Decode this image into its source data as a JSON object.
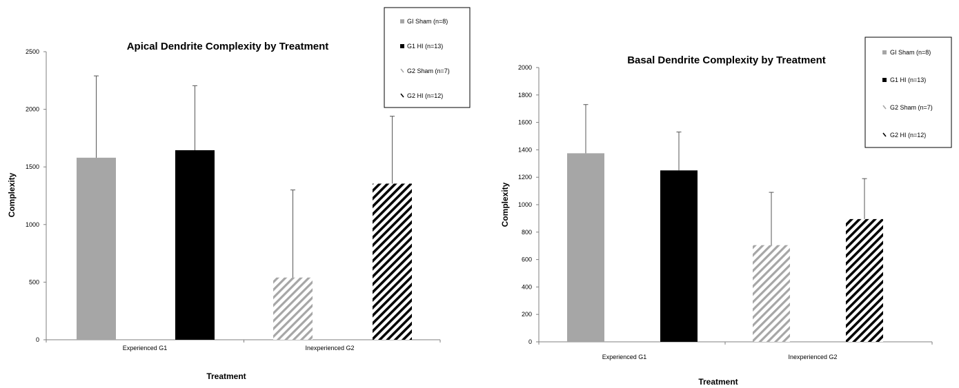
{
  "chart_data": [
    {
      "type": "bar",
      "title": "Apical Dendrite Complexity by Treatment",
      "xlabel": "Treatment",
      "ylabel": "Complexity",
      "ylim": [
        0,
        2500
      ],
      "yticks": [
        0,
        500,
        1000,
        1500,
        2000,
        2500
      ],
      "categories": [
        "Experienced G1",
        "Inexperienced G2"
      ],
      "series": [
        {
          "name": "GI Sham (n=8)",
          "values": [
            1580,
            null
          ],
          "errors": [
            710,
            null
          ],
          "color": "#a6a6a6",
          "pattern": "solid"
        },
        {
          "name": "G1 HI (n=13)",
          "values": [
            1645,
            null
          ],
          "errors": [
            560,
            null
          ],
          "color": "#000000",
          "pattern": "solid"
        },
        {
          "name": "G2 Sham (n=7)",
          "values": [
            null,
            540
          ],
          "errors": [
            null,
            760
          ],
          "color": "#a6a6a6",
          "pattern": "diagonal"
        },
        {
          "name": "G2 HI (n=12)",
          "values": [
            null,
            1355
          ],
          "errors": [
            null,
            585
          ],
          "color": "#000000",
          "pattern": "diagonal"
        }
      ],
      "legend_position": "top-right",
      "grid": false
    },
    {
      "type": "bar",
      "title": "Basal Dendrite Complexity by Treatment",
      "xlabel": "Treatment",
      "ylabel": "Complexity",
      "ylim": [
        0,
        2000
      ],
      "yticks": [
        0,
        200,
        400,
        600,
        800,
        1000,
        1200,
        1400,
        1600,
        1800,
        2000
      ],
      "categories": [
        "Experienced G1",
        "Inexperienced G2"
      ],
      "series": [
        {
          "name": "GI Sham (n=8)",
          "values": [
            1375,
            null
          ],
          "errors": [
            355,
            null
          ],
          "color": "#a6a6a6",
          "pattern": "solid"
        },
        {
          "name": "G1 HI (n=13)",
          "values": [
            1250,
            null
          ],
          "errors": [
            280,
            null
          ],
          "color": "#000000",
          "pattern": "solid"
        },
        {
          "name": "G2 Sham (n=7)",
          "values": [
            null,
            705
          ],
          "errors": [
            null,
            385
          ],
          "color": "#a6a6a6",
          "pattern": "diagonal"
        },
        {
          "name": "G2 HI (n=12)",
          "values": [
            null,
            895
          ],
          "errors": [
            null,
            295
          ],
          "color": "#000000",
          "pattern": "diagonal"
        }
      ],
      "legend_position": "top-right",
      "grid": false
    }
  ]
}
